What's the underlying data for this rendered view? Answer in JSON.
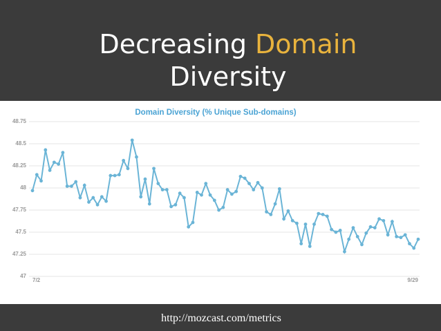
{
  "slide": {
    "title_line1": [
      "Decreasing",
      "Domain"
    ],
    "title_line2": "Diversity",
    "footer": "http://mozcast.com/metrics"
  },
  "chart_data": {
    "type": "line",
    "title": "Domain Diversity (% Unique Sub-domains)",
    "categories": [
      "7/2",
      null,
      null,
      null,
      null,
      null,
      null,
      null,
      null,
      null,
      null,
      null,
      null,
      null,
      null,
      null,
      null,
      null,
      null,
      null,
      null,
      null,
      null,
      null,
      null,
      null,
      null,
      null,
      null,
      null,
      null,
      null,
      null,
      null,
      null,
      null,
      null,
      null,
      null,
      null,
      null,
      null,
      null,
      null,
      null,
      null,
      null,
      null,
      null,
      null,
      null,
      null,
      null,
      null,
      null,
      null,
      null,
      null,
      null,
      null,
      null,
      null,
      null,
      null,
      null,
      null,
      null,
      null,
      null,
      null,
      null,
      null,
      null,
      null,
      null,
      null,
      null,
      null,
      null,
      null,
      null,
      null,
      null,
      null,
      null,
      null,
      null,
      null,
      null,
      "9/29"
    ],
    "values": [
      47.97,
      48.15,
      48.08,
      48.43,
      48.2,
      48.29,
      48.27,
      48.4,
      48.02,
      48.02,
      48.07,
      47.89,
      48.03,
      47.84,
      47.89,
      47.81,
      47.9,
      47.85,
      48.14,
      48.14,
      48.15,
      48.31,
      48.22,
      48.54,
      48.35,
      47.9,
      48.1,
      47.82,
      48.22,
      48.05,
      47.98,
      47.98,
      47.79,
      47.81,
      47.94,
      47.89,
      47.56,
      47.61,
      47.95,
      47.92,
      48.05,
      47.92,
      47.86,
      47.75,
      47.78,
      47.98,
      47.93,
      47.96,
      48.13,
      48.11,
      48.05,
      47.98,
      48.06,
      48.0,
      47.73,
      47.7,
      47.82,
      47.99,
      47.65,
      47.74,
      47.63,
      47.6,
      47.37,
      47.59,
      47.34,
      47.59,
      47.71,
      47.7,
      47.68,
      47.53,
      47.5,
      47.52,
      47.28,
      47.42,
      47.55,
      47.45,
      47.36,
      47.49,
      47.56,
      47.55,
      47.65,
      47.63,
      47.47,
      47.62,
      47.45,
      47.44,
      47.47,
      47.37,
      47.32,
      47.42
    ],
    "color": "#6ab4d6",
    "ylim": [
      47,
      48.75
    ],
    "yticks": [
      47,
      47.25,
      47.5,
      47.75,
      48,
      48.25,
      48.5,
      48.75
    ],
    "grid": true
  }
}
